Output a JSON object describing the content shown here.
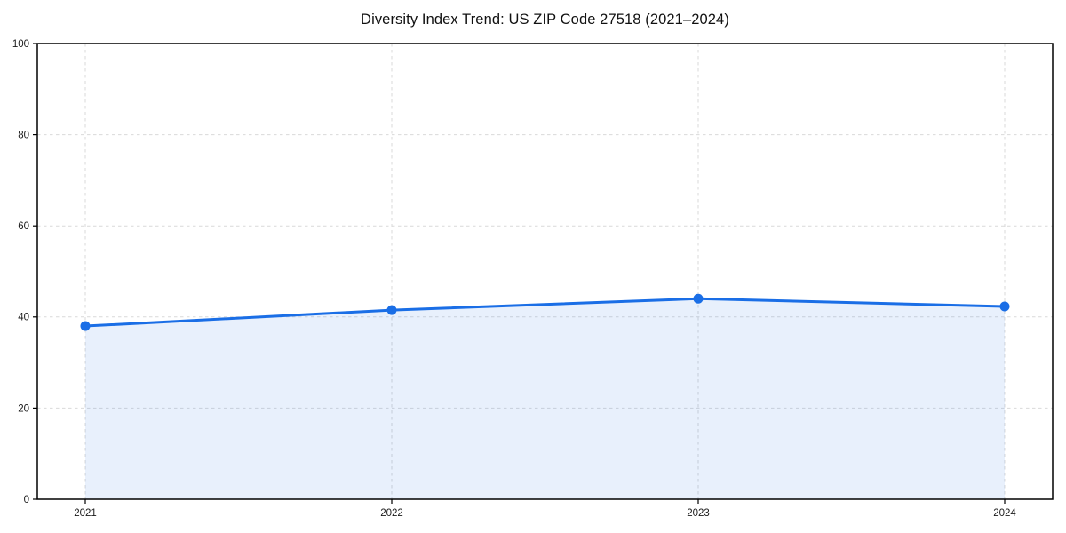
{
  "chart_data": {
    "type": "line",
    "title": "Diversity Index Trend: US ZIP Code 27518 (2021–2024)",
    "x": [
      "2021",
      "2022",
      "2023",
      "2024"
    ],
    "values": [
      38,
      41.5,
      44,
      42.3
    ],
    "xlabel": "",
    "ylabel": "",
    "ylim": [
      0,
      100
    ],
    "yticks": [
      0,
      20,
      40,
      60,
      80,
      100
    ],
    "grid": true,
    "grid_style": "dashed",
    "area_fill": true,
    "markers": true,
    "legend": "none",
    "colors": {
      "line": "#1a6ee6",
      "marker": "#1a6ee6",
      "fill": "rgba(26,110,230,0.10)",
      "grid": "#d9d9d9",
      "spine": "#000000",
      "text": "#1a1a1a"
    }
  }
}
